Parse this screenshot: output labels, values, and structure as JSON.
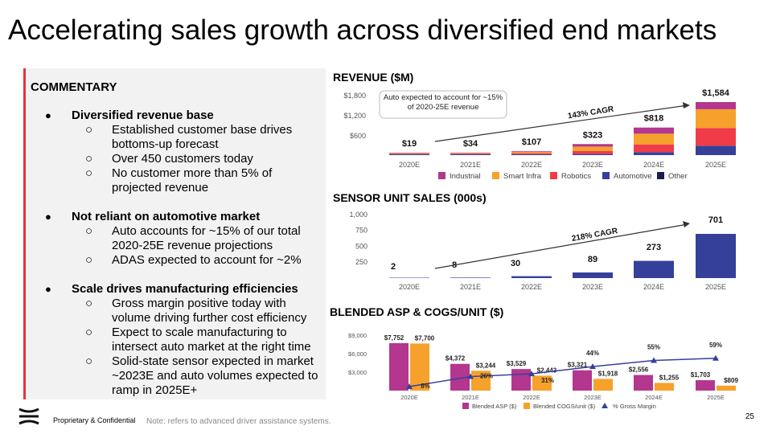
{
  "title": "Accelerating sales growth across diversified end markets",
  "commentary": {
    "heading": "COMMENTARY",
    "sections": [
      {
        "label": "Diversified revenue base",
        "items": [
          "Established customer base drives bottoms-up forecast",
          "Over 450 customers today",
          "No customer more than 5% of projected revenue"
        ]
      },
      {
        "label": "Not reliant on automotive market",
        "items": [
          "Auto accounts for ~15% of our total 2020-25E revenue projections",
          "ADAS expected to account for ~2%"
        ]
      },
      {
        "label": "Scale drives manufacturing efficiencies",
        "items": [
          "Gross margin positive today with volume driving further cost efficiency",
          "Expect to scale manufacturing to intersect auto market at the right time",
          "Solid-state sensor expected in market ~2023E and auto volumes expected to ramp in 2025E+"
        ]
      }
    ]
  },
  "footer": {
    "confidential": "Proprietary  & Confidential",
    "note": "Note: refers to advanced driver assistance systems.",
    "page": "25"
  },
  "chart_data": [
    {
      "type": "bar",
      "title": "REVENUE ($M)",
      "stacked": true,
      "categories": [
        "2020E",
        "2021E",
        "2022E",
        "2023E",
        "2024E",
        "2025E"
      ],
      "yticks": [
        "$1,800",
        "$1,200",
        "$600"
      ],
      "ylim": [
        0,
        1800
      ],
      "totals": [
        19,
        34,
        107,
        323,
        818,
        1584
      ],
      "total_labels": [
        "$19",
        "$34",
        "$107",
        "$323",
        "$818",
        "$1,584"
      ],
      "series": [
        {
          "name": "Other",
          "color": "#1b1f4f",
          "values": [
            1,
            1,
            2,
            3,
            5,
            10
          ]
        },
        {
          "name": "Automotive",
          "color": "#35409a",
          "values": [
            10,
            8,
            18,
            25,
            80,
            270
          ]
        },
        {
          "name": "Robotics",
          "color": "#f03c48",
          "values": [
            3,
            5,
            30,
            90,
            230,
            530
          ]
        },
        {
          "name": "Smart Infra",
          "color": "#f6a12b",
          "values": [
            3,
            15,
            37,
            130,
            320,
            560
          ]
        },
        {
          "name": "Industrial",
          "color": "#b3368f",
          "values": [
            2,
            5,
            20,
            75,
            183,
            214
          ]
        }
      ],
      "legend_order": [
        "Industrial",
        "Smart Infra",
        "Robotics",
        "Automotive",
        "Other"
      ],
      "annotations": {
        "callout": "Auto expected to account for ~15% of 2020-25E revenue",
        "cagr": "143% CAGR"
      }
    },
    {
      "type": "bar",
      "title": "SENSOR UNIT SALES (000s)",
      "categories": [
        "2020E",
        "2021E",
        "2022E",
        "2023E",
        "2024E",
        "2025E"
      ],
      "yticks": [
        "1,000",
        "750",
        "500",
        "250"
      ],
      "ylim": [
        0,
        1000
      ],
      "color": "#35409a",
      "values": [
        2,
        8,
        30,
        89,
        273,
        701
      ],
      "labels": [
        "2",
        "8",
        "30",
        "89",
        "273",
        "701"
      ],
      "annotations": {
        "cagr": "218% CAGR"
      }
    },
    {
      "type": "bar",
      "title": "BLENDED ASP & COGS/UNIT ($)",
      "categories": [
        "2020E",
        "2021E",
        "2022E",
        "2023E",
        "2024E",
        "2025E"
      ],
      "yticks": [
        "$9,000",
        "$6,000",
        "$3,000"
      ],
      "ylim": [
        0,
        9000
      ],
      "series": [
        {
          "name": "Blended ASP ($)",
          "color": "#b3368f",
          "values": [
            7752,
            4372,
            3529,
            3321,
            2556,
            1703
          ],
          "labels": [
            "$7,752",
            "$4,372",
            "$3,529",
            "$3,321",
            "$2,556",
            "$1,703"
          ]
        },
        {
          "name": "Blended COGS/unit ($)",
          "color": "#f6a12b",
          "values": [
            7700,
            3244,
            2443,
            1918,
            1255,
            809
          ],
          "labels": [
            "$7,700",
            "$3,244",
            "$2,443",
            "$1,918",
            "$1,255",
            "$809"
          ]
        }
      ],
      "line": {
        "name": "% Gross Margin",
        "color": "#35409a",
        "values": [
          8,
          26,
          31,
          44,
          55,
          59
        ],
        "labels": [
          "8%",
          "26%",
          "31%",
          "44%",
          "55%",
          "59%"
        ]
      }
    }
  ]
}
